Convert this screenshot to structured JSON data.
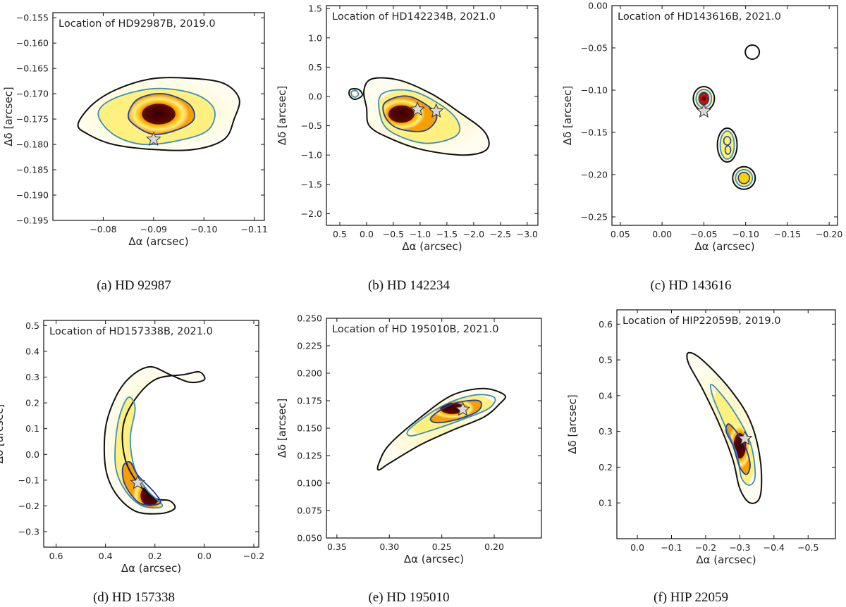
{
  "figure": {
    "captions": [
      "(a) HD 92987",
      "(b) HD 142234",
      "(c) HD 143616",
      "(d) HD 157338",
      "(e) HD 195010",
      "(f) HIP 22059"
    ]
  },
  "chart_data": [
    {
      "type": "heatmap",
      "title": "Location of HD92987B, 2019.0",
      "xlabel": "Δα (arcsec)",
      "ylabel": "Δδ [arcsec]",
      "xlim": [
        -0.07,
        -0.112
      ],
      "ylim": [
        -0.195,
        -0.154
      ],
      "xticks": [
        -0.08,
        -0.09,
        -0.1,
        -0.11
      ],
      "xticklabels": [
        "−0.08",
        "−0.09",
        "−0.10",
        "−0.11"
      ],
      "yticks": [
        -0.155,
        -0.16,
        -0.165,
        -0.17,
        -0.175,
        -0.18,
        -0.185,
        -0.19,
        -0.195
      ],
      "yticklabels": [
        "−0.155",
        "−0.160",
        "−0.165",
        "−0.170",
        "−0.175",
        "−0.180",
        "−0.185",
        "−0.190",
        "−0.195"
      ],
      "peak": [
        -0.091,
        -0.174
      ],
      "star": [
        -0.09,
        -0.179
      ],
      "contours": [
        {
          "level": "outer",
          "color": "#111111",
          "points": [
            [
              -0.075,
              -0.176
            ],
            [
              -0.078,
              -0.172
            ],
            [
              -0.083,
              -0.169
            ],
            [
              -0.09,
              -0.167
            ],
            [
              -0.098,
              -0.167
            ],
            [
              -0.104,
              -0.168
            ],
            [
              -0.107,
              -0.171
            ],
            [
              -0.106,
              -0.175
            ],
            [
              -0.104,
              -0.179
            ],
            [
              -0.098,
              -0.181
            ],
            [
              -0.09,
              -0.181
            ],
            [
              -0.082,
              -0.18
            ],
            [
              -0.077,
              -0.178
            ]
          ]
        },
        {
          "level": "mid",
          "color": "#3a8fc0",
          "points": [
            [
              -0.079,
              -0.174
            ],
            [
              -0.082,
              -0.171
            ],
            [
              -0.09,
              -0.169
            ],
            [
              -0.098,
              -0.17
            ],
            [
              -0.102,
              -0.173
            ],
            [
              -0.101,
              -0.177
            ],
            [
              -0.096,
              -0.179
            ],
            [
              -0.088,
              -0.18
            ],
            [
              -0.082,
              -0.178
            ]
          ]
        },
        {
          "level": "inner",
          "color": "#1f3fa8",
          "points": [
            [
              -0.085,
              -0.174
            ],
            [
              -0.087,
              -0.171
            ],
            [
              -0.092,
              -0.17
            ],
            [
              -0.097,
              -0.172
            ],
            [
              -0.098,
              -0.175
            ],
            [
              -0.095,
              -0.177
            ],
            [
              -0.09,
              -0.178
            ],
            [
              -0.086,
              -0.176
            ]
          ]
        }
      ]
    },
    {
      "type": "heatmap",
      "title": "Location of HD142234B, 2021.0",
      "xlabel": "Δα (arcsec)",
      "ylabel": "Δδ [arcsec]",
      "xlim": [
        0.75,
        -3.2
      ],
      "ylim": [
        -2.2,
        1.55
      ],
      "xticks": [
        0.5,
        0.0,
        -0.5,
        -1.0,
        -1.5,
        -2.0,
        -2.5,
        -3.0
      ],
      "xticklabels": [
        "0.5",
        "0.0",
        "−0.5",
        "−1.0",
        "−1.5",
        "−2.0",
        "−2.5",
        "−3.0"
      ],
      "yticks": [
        1.5,
        1.0,
        0.5,
        0.0,
        -0.5,
        -1.0,
        -1.5,
        -2.0
      ],
      "yticklabels": [
        "1.5",
        "1.0",
        "0.5",
        "0.0",
        "−0.5",
        "−1.0",
        "−1.5",
        "−2.0"
      ],
      "peak": [
        -0.65,
        -0.3
      ],
      "star": [
        -0.95,
        -0.22
      ],
      "star2": [
        -1.3,
        -0.25
      ],
      "contours": [
        {
          "level": "outer",
          "color": "#111111",
          "points": [
            [
              -0.1,
              0.3
            ],
            [
              -0.6,
              0.28
            ],
            [
              -1.2,
              0.05
            ],
            [
              -1.7,
              -0.25
            ],
            [
              -2.2,
              -0.6
            ],
            [
              -2.25,
              -0.9
            ],
            [
              -1.8,
              -1.0
            ],
            [
              -1.0,
              -0.9
            ],
            [
              -0.4,
              -0.7
            ],
            [
              -0.05,
              -0.5
            ],
            [
              0.0,
              -0.2
            ],
            [
              0.05,
              0.1
            ]
          ]
        },
        {
          "level": "mid",
          "color": "#3a8fc0",
          "points": [
            [
              -0.3,
              0.05
            ],
            [
              -0.9,
              0.08
            ],
            [
              -1.6,
              -0.3
            ],
            [
              -1.7,
              -0.65
            ],
            [
              -1.1,
              -0.8
            ],
            [
              -0.45,
              -0.6
            ],
            [
              -0.25,
              -0.3
            ]
          ]
        },
        {
          "level": "inner",
          "color": "#1f3fa8",
          "points": [
            [
              -0.35,
              -0.1
            ],
            [
              -0.8,
              0.0
            ],
            [
              -1.3,
              -0.3
            ],
            [
              -1.1,
              -0.58
            ],
            [
              -0.6,
              -0.55
            ],
            [
              -0.35,
              -0.35
            ]
          ]
        },
        {
          "level": "outer-island",
          "color": "#111111",
          "points": [
            [
              0.08,
              0.02
            ],
            [
              0.15,
              0.12
            ],
            [
              0.3,
              0.12
            ],
            [
              0.32,
              0.02
            ],
            [
              0.22,
              -0.05
            ]
          ]
        },
        {
          "level": "mid-island",
          "color": "#3a8fc0",
          "points": [
            [
              0.15,
              0.04
            ],
            [
              0.2,
              0.1
            ],
            [
              0.28,
              0.08
            ],
            [
              0.27,
              0.01
            ],
            [
              0.2,
              -0.01
            ]
          ]
        }
      ]
    },
    {
      "type": "heatmap",
      "title": "Location of HD143616B, 2021.0",
      "xlabel": "Δα (arcsec)",
      "ylabel": "Δδ [arcsec]",
      "xlim": [
        0.06,
        -0.21
      ],
      "ylim": [
        -0.26,
        0.0
      ],
      "xticks": [
        0.05,
        0.0,
        -0.05,
        -0.1,
        -0.15,
        -0.2
      ],
      "xticklabels": [
        "0.05",
        "0.00",
        "−0.05",
        "−0.10",
        "−0.15",
        "−0.20"
      ],
      "yticks": [
        0.0,
        -0.05,
        -0.1,
        -0.15,
        -0.2,
        -0.25
      ],
      "yticklabels": [
        "0.00",
        "−0.05",
        "−0.10",
        "−0.15",
        "−0.20",
        "−0.25"
      ],
      "peaks": [
        [
          -0.05,
          -0.11
        ],
        [
          -0.098,
          -0.204
        ],
        [
          -0.078,
          -0.165
        ]
      ],
      "star": [
        -0.05,
        -0.125
      ],
      "circle": [
        -0.108,
        -0.055
      ]
    },
    {
      "type": "heatmap",
      "title": "Location of HD157338B, 2021.0",
      "xlabel": "Δα (arcsec)",
      "ylabel": "Δδ [arcsec]",
      "xlim": [
        0.65,
        -0.22
      ],
      "ylim": [
        -0.36,
        0.52
      ],
      "xticks": [
        0.6,
        0.4,
        0.2,
        0.0,
        -0.2
      ],
      "xticklabels": [
        "0.6",
        "0.4",
        "0.2",
        "0.0",
        "−0.2"
      ],
      "yticks": [
        0.5,
        0.4,
        0.3,
        0.2,
        0.1,
        0.0,
        -0.1,
        -0.2,
        -0.3
      ],
      "yticklabels": [
        "0.5",
        "0.4",
        "0.3",
        "0.2",
        "0.1",
        "0.0",
        "−0.1",
        "−0.2",
        "−0.3"
      ],
      "peak": [
        0.22,
        -0.16
      ],
      "star": [
        0.27,
        -0.11
      ],
      "contours": [
        {
          "level": "outer",
          "color": "#111111",
          "points": [
            [
              0.22,
              0.34
            ],
            [
              0.3,
              0.3
            ],
            [
              0.36,
              0.22
            ],
            [
              0.4,
              0.1
            ],
            [
              0.4,
              -0.05
            ],
            [
              0.36,
              -0.15
            ],
            [
              0.28,
              -0.22
            ],
            [
              0.18,
              -0.23
            ],
            [
              0.12,
              -0.21
            ],
            [
              0.14,
              -0.18
            ],
            [
              0.2,
              -0.17
            ],
            [
              0.27,
              -0.11
            ],
            [
              0.32,
              -0.02
            ],
            [
              0.33,
              0.1
            ],
            [
              0.29,
              0.2
            ],
            [
              0.2,
              0.29
            ],
            [
              0.08,
              0.31
            ],
            [
              0.02,
              0.32
            ],
            [
              0.0,
              0.29
            ],
            [
              0.06,
              0.28
            ],
            [
              0.14,
              0.31
            ]
          ]
        },
        {
          "level": "mid",
          "color": "#3a8fc0",
          "points": [
            [
              0.31,
              0.22
            ],
            [
              0.35,
              0.12
            ],
            [
              0.36,
              -0.04
            ],
            [
              0.32,
              -0.14
            ],
            [
              0.25,
              -0.2
            ],
            [
              0.17,
              -0.2
            ],
            [
              0.23,
              -0.14
            ],
            [
              0.28,
              -0.06
            ],
            [
              0.3,
              0.06
            ],
            [
              0.28,
              0.18
            ]
          ]
        },
        {
          "level": "inner",
          "color": "#1f3fa8",
          "points": [
            [
              0.33,
              -0.05
            ],
            [
              0.32,
              -0.12
            ],
            [
              0.26,
              -0.19
            ],
            [
              0.18,
              -0.19
            ],
            [
              0.2,
              -0.15
            ],
            [
              0.27,
              -0.08
            ],
            [
              0.3,
              -0.03
            ]
          ]
        }
      ]
    },
    {
      "type": "heatmap",
      "title": "Location of HD 195010B, 2021.0",
      "xlabel": "Δα (arcsec)",
      "ylabel": "Δδ [arcsec]",
      "xlim": [
        0.36,
        0.155
      ],
      "ylim": [
        0.05,
        0.25
      ],
      "xticks": [
        0.35,
        0.3,
        0.25,
        0.2
      ],
      "xticklabels": [
        "0.35",
        "0.30",
        "0.25",
        "0.20"
      ],
      "yticks": [
        0.25,
        0.225,
        0.2,
        0.175,
        0.15,
        0.125,
        0.1,
        0.075,
        0.05
      ],
      "yticklabels": [
        "0.250",
        "0.225",
        "0.200",
        "0.175",
        "0.150",
        "0.125",
        "0.100",
        "0.075",
        "0.050"
      ],
      "peak": [
        0.24,
        0.168
      ],
      "star": [
        0.23,
        0.167
      ],
      "contours": [
        {
          "level": "outer",
          "color": "#111111",
          "points": [
            [
              0.31,
              0.118
            ],
            [
              0.3,
              0.135
            ],
            [
              0.27,
              0.16
            ],
            [
              0.24,
              0.18
            ],
            [
              0.21,
              0.186
            ],
            [
              0.19,
              0.18
            ],
            [
              0.195,
              0.172
            ],
            [
              0.21,
              0.16
            ],
            [
              0.24,
              0.148
            ],
            [
              0.27,
              0.135
            ],
            [
              0.3,
              0.118
            ],
            [
              0.31,
              0.112
            ]
          ]
        },
        {
          "level": "mid",
          "color": "#3a8fc0",
          "points": [
            [
              0.28,
              0.15
            ],
            [
              0.25,
              0.17
            ],
            [
              0.22,
              0.18
            ],
            [
              0.2,
              0.178
            ],
            [
              0.205,
              0.168
            ],
            [
              0.23,
              0.158
            ],
            [
              0.26,
              0.148
            ],
            [
              0.28,
              0.143
            ]
          ]
        },
        {
          "level": "inner",
          "color": "#1f3fa8",
          "points": [
            [
              0.26,
              0.16
            ],
            [
              0.24,
              0.172
            ],
            [
              0.215,
              0.175
            ],
            [
              0.215,
              0.166
            ],
            [
              0.235,
              0.158
            ],
            [
              0.255,
              0.155
            ]
          ]
        }
      ]
    },
    {
      "type": "heatmap",
      "title": "Location of HIP22059B, 2019.0",
      "xlabel": "Δα (arcsec)",
      "ylabel": "Δδ [arcsec]",
      "xlim": [
        0.06,
        -0.58
      ],
      "ylim": [
        0.0,
        0.64
      ],
      "xticks": [
        0.0,
        -0.1,
        -0.2,
        -0.3,
        -0.4,
        -0.5
      ],
      "xticklabels": [
        "0.0",
        "−0.1",
        "−0.2",
        "−0.3",
        "−0.4",
        "−0.5"
      ],
      "yticks": [
        0.6,
        0.5,
        0.4,
        0.3,
        0.2,
        0.1
      ],
      "yticklabels": [
        "0.6",
        "0.5",
        "0.4",
        "0.3",
        "0.2",
        "0.1"
      ],
      "peak": [
        -0.3,
        0.26
      ],
      "star": [
        -0.315,
        0.28
      ],
      "contours": [
        {
          "level": "outer",
          "color": "#111111",
          "points": [
            [
              -0.15,
              0.52
            ],
            [
              -0.19,
              0.5
            ],
            [
              -0.27,
              0.42
            ],
            [
              -0.33,
              0.33
            ],
            [
              -0.36,
              0.22
            ],
            [
              -0.36,
              0.12
            ],
            [
              -0.33,
              0.1
            ],
            [
              -0.3,
              0.14
            ],
            [
              -0.28,
              0.22
            ],
            [
              -0.24,
              0.32
            ],
            [
              -0.19,
              0.42
            ],
            [
              -0.15,
              0.49
            ]
          ]
        },
        {
          "level": "mid",
          "color": "#3a8fc0",
          "points": [
            [
              -0.22,
              0.43
            ],
            [
              -0.28,
              0.36
            ],
            [
              -0.33,
              0.27
            ],
            [
              -0.345,
              0.18
            ],
            [
              -0.33,
              0.15
            ],
            [
              -0.305,
              0.17
            ],
            [
              -0.29,
              0.24
            ],
            [
              -0.25,
              0.33
            ],
            [
              -0.22,
              0.4
            ]
          ]
        },
        {
          "level": "inner",
          "color": "#1f3fa8",
          "points": [
            [
              -0.27,
              0.32
            ],
            [
              -0.31,
              0.27
            ],
            [
              -0.33,
              0.21
            ],
            [
              -0.32,
              0.18
            ],
            [
              -0.3,
              0.2
            ],
            [
              -0.28,
              0.26
            ],
            [
              -0.26,
              0.3
            ]
          ]
        }
      ]
    }
  ]
}
